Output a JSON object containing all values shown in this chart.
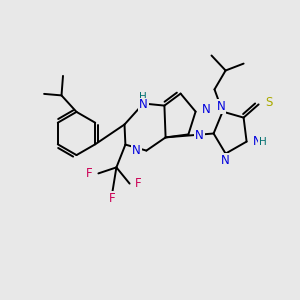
{
  "bg_color": "#e8e8e8",
  "bond_color": "#000000",
  "bond_width": 1.4,
  "atom_colors": {
    "N": "#0000dd",
    "F": "#cc0055",
    "S": "#aaaa00",
    "H_teal": "#007070",
    "C": "#000000"
  }
}
